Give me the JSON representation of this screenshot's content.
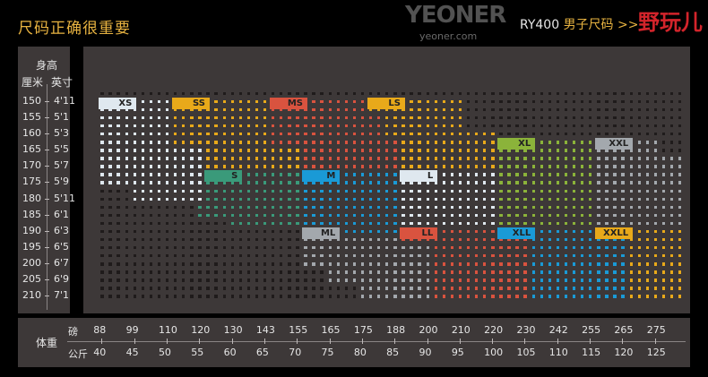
{
  "header": {
    "title": "尺码正确很重要",
    "model_code": "RY400",
    "model_text": "男子尺码 >>",
    "watermark": {
      "brand": "YEONER",
      "url": "yeoner.com",
      "cn": "野玩儿"
    }
  },
  "height_axis": {
    "title": "身高",
    "unit_cm": "厘米",
    "unit_in": "英寸",
    "cm": [
      "150",
      "155",
      "160",
      "165",
      "170",
      "175",
      "180",
      "185",
      "190",
      "195",
      "200",
      "205",
      "210"
    ],
    "inch": [
      "4'11",
      "5'1",
      "5'3",
      "5'5",
      "5'7",
      "5'9",
      "5'11",
      "6'1",
      "6'3",
      "6'5",
      "6'7",
      "6'9",
      "7'1"
    ]
  },
  "weight_axis": {
    "title": "体重",
    "unit_lb": "磅",
    "unit_kg": "公斤",
    "lb": [
      "88",
      "99",
      "110",
      "120",
      "130",
      "143",
      "155",
      "165",
      "175",
      "188",
      "200",
      "210",
      "220",
      "230",
      "242",
      "255",
      "265",
      "275"
    ],
    "kg": [
      "40",
      "45",
      "50",
      "55",
      "60",
      "65",
      "70",
      "75",
      "80",
      "85",
      "90",
      "95",
      "100",
      "105",
      "110",
      "115",
      "120",
      "125"
    ]
  },
  "colors": {
    "panel": "#3d3838",
    "empty_dot": "#1f1b1b",
    "title": "#e8b341"
  },
  "chart_data": {
    "type": "heatmap",
    "x": "weight_kg",
    "y": "height_cm",
    "xlim": [
      40,
      128.75
    ],
    "ylim": [
      147.5,
      210
    ],
    "sizes": [
      {
        "name": "XS",
        "color": "#dfe8ef",
        "label_at": {
          "kg": 40,
          "cm": 150
        },
        "areas": [
          {
            "kg": [
              40,
              50
            ],
            "cm": [
              150,
              162.5
            ]
          },
          {
            "kg": [
              40,
              55
            ],
            "cm": [
              165,
              175
            ]
          },
          {
            "kg": [
              45,
              55
            ],
            "cm": [
              177.5,
              180
            ]
          }
        ]
      },
      {
        "name": "SS",
        "color": "#e8a91a",
        "label_at": {
          "kg": 51.25,
          "cm": 150
        },
        "areas": [
          {
            "kg": [
              51.25,
              65
            ],
            "cm": [
              150,
              162.5
            ]
          },
          {
            "kg": [
              56.25,
              70
            ],
            "cm": [
              165,
              170
            ]
          }
        ]
      },
      {
        "name": "MS",
        "color": "#d9533f",
        "label_at": {
          "kg": 66.25,
          "cm": 150
        },
        "areas": [
          {
            "kg": [
              66.25,
              80
            ],
            "cm": [
              150,
              152.5
            ]
          },
          {
            "kg": [
              66.25,
              82.5
            ],
            "cm": [
              155,
              160
            ]
          },
          {
            "kg": [
              66.25,
              85
            ],
            "cm": [
              162.5,
              162.5
            ]
          },
          {
            "kg": [
              71.25,
              85
            ],
            "cm": [
              165,
              170
            ]
          }
        ]
      },
      {
        "name": "LS",
        "color": "#e8a91a",
        "label_at": {
          "kg": 81.25,
          "cm": 150
        },
        "areas": [
          {
            "kg": [
              81.25,
              95
            ],
            "cm": [
              150,
              152.5
            ]
          },
          {
            "kg": [
              83.75,
              95
            ],
            "cm": [
              155,
              157.5
            ]
          },
          {
            "kg": [
              83.75,
              100
            ],
            "cm": [
              160,
              160
            ]
          },
          {
            "kg": [
              86.25,
              100
            ],
            "cm": [
              162.5,
              170
            ]
          }
        ]
      },
      {
        "name": "XL",
        "color": "#8bb33a",
        "label_at": {
          "kg": 101.25,
          "cm": 162.5
        },
        "areas": [
          {
            "kg": [
              101.25,
              115
            ],
            "cm": [
              162.5,
              187.5
            ]
          }
        ]
      },
      {
        "name": "XXL",
        "color": "#a3a8ad",
        "label_at": {
          "kg": 116.25,
          "cm": 162.5
        },
        "areas": [
          {
            "kg": [
              116.25,
              125
            ],
            "cm": [
              162.5,
              165
            ]
          },
          {
            "kg": [
              116.25,
              128.75
            ],
            "cm": [
              167.5,
              187.5
            ]
          }
        ]
      },
      {
        "name": "S",
        "color": "#3a9a7a",
        "label_at": {
          "kg": 56.25,
          "cm": 172.5
        },
        "areas": [
          {
            "kg": [
              56.25,
              70
            ],
            "cm": [
              172.5,
              180
            ]
          },
          {
            "kg": [
              55,
              70
            ],
            "cm": [
              182.5,
              185
            ]
          },
          {
            "kg": [
              60,
              70
            ],
            "cm": [
              187.5,
              187.5
            ]
          }
        ]
      },
      {
        "name": "M",
        "color": "#1a9ad6",
        "label_at": {
          "kg": 71.25,
          "cm": 172.5
        },
        "areas": [
          {
            "kg": [
              71.25,
              85
            ],
            "cm": [
              172.5,
              190
            ]
          }
        ]
      },
      {
        "name": "L",
        "color": "#dfe8ef",
        "label_at": {
          "kg": 86.25,
          "cm": 172.5
        },
        "areas": [
          {
            "kg": [
              86.25,
              100
            ],
            "cm": [
              172.5,
              187.5
            ]
          }
        ]
      },
      {
        "name": "ML",
        "color": "#a3a8ad",
        "label_at": {
          "kg": 71.25,
          "cm": 190
        },
        "areas": [
          {
            "kg": [
              71.25,
              85
            ],
            "cm": [
              192.5,
              192.5
            ]
          },
          {
            "kg": [
              71.25,
              90
            ],
            "cm": [
              195,
              200
            ]
          },
          {
            "kg": [
              75,
              90
            ],
            "cm": [
              202.5,
              205
            ]
          },
          {
            "kg": [
              80,
              90
            ],
            "cm": [
              207.5,
              210
            ]
          }
        ]
      },
      {
        "name": "LL",
        "color": "#d9533f",
        "label_at": {
          "kg": 86.25,
          "cm": 190
        },
        "areas": [
          {
            "kg": [
              86.25,
              100
            ],
            "cm": [
              190,
              190
            ]
          },
          {
            "kg": [
              86.25,
              105
            ],
            "cm": [
              192.5,
              192.5
            ]
          },
          {
            "kg": [
              91.25,
              105
            ],
            "cm": [
              195,
              210
            ]
          }
        ]
      },
      {
        "name": "XLL",
        "color": "#1a9ad6",
        "label_at": {
          "kg": 101.25,
          "cm": 190
        },
        "areas": [
          {
            "kg": [
              101.25,
              115
            ],
            "cm": [
              190,
              190
            ]
          },
          {
            "kg": [
              106.25,
              120
            ],
            "cm": [
              192.5,
              210
            ]
          }
        ]
      },
      {
        "name": "XXLL",
        "color": "#e8a91a",
        "label_at": {
          "kg": 116.25,
          "cm": 190
        },
        "areas": [
          {
            "kg": [
              116.25,
              128.75
            ],
            "cm": [
              190,
              190
            ]
          },
          {
            "kg": [
              121.25,
              128.75
            ],
            "cm": [
              192.5,
              210
            ]
          }
        ]
      }
    ]
  }
}
